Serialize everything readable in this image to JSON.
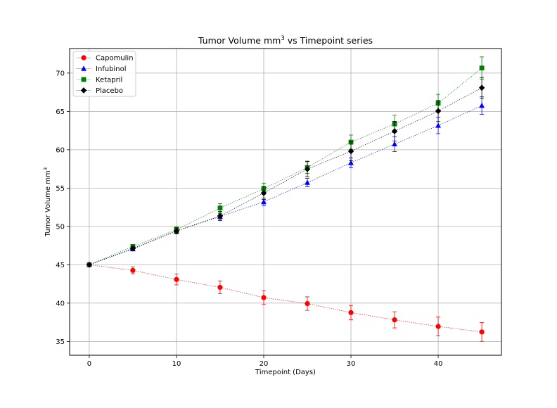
{
  "chart_data": {
    "type": "line",
    "title": "Tumor Volume mm",
    "title_sup": "3",
    "title_suffix": " vs Timepoint series",
    "xlabel": "Timepoint (Days)",
    "ylabel": "Tumor Volume mm",
    "ylabel_sup": "3",
    "x": [
      0,
      5,
      10,
      15,
      20,
      25,
      30,
      35,
      40,
      45
    ],
    "xlim": [
      -2.25,
      47.25
    ],
    "ylim": [
      33.2,
      73.2
    ],
    "xticks": [
      0,
      10,
      20,
      30,
      40
    ],
    "yticks": [
      35,
      40,
      45,
      50,
      55,
      60,
      65,
      70
    ],
    "grid": true,
    "legend_position": "top-left",
    "series": [
      {
        "name": "Capomulin",
        "color": "#ff0000",
        "marker": "circle",
        "values": [
          45.0,
          44.27,
          43.08,
          42.06,
          40.72,
          39.94,
          38.77,
          37.82,
          36.96,
          36.24
        ],
        "errors": [
          0.0,
          0.45,
          0.7,
          0.84,
          0.91,
          0.88,
          0.93,
          1.05,
          1.22,
          1.22
        ]
      },
      {
        "name": "Infubinol",
        "color": "#0000ff",
        "marker": "triangle",
        "values": [
          45.0,
          47.06,
          49.4,
          51.3,
          53.2,
          55.72,
          58.3,
          60.74,
          63.16,
          65.76
        ],
        "errors": [
          0.0,
          0.24,
          0.28,
          0.36,
          0.48,
          0.55,
          0.63,
          0.98,
          1.06,
          1.14
        ]
      },
      {
        "name": "Ketapril",
        "color": "#008000",
        "marker": "square",
        "values": [
          45.0,
          47.39,
          49.58,
          52.4,
          54.92,
          57.68,
          60.99,
          63.37,
          66.07,
          70.66
        ],
        "errors": [
          0.0,
          0.26,
          0.36,
          0.58,
          0.73,
          0.76,
          0.93,
          1.13,
          1.16,
          1.45
        ]
      },
      {
        "name": "Placebo",
        "color": "#000000",
        "marker": "diamond",
        "values": [
          45.0,
          47.13,
          49.42,
          51.36,
          54.36,
          57.48,
          59.81,
          62.42,
          65.05,
          68.08
        ],
        "errors": [
          0.0,
          0.22,
          0.4,
          0.61,
          0.84,
          1.03,
          1.22,
          1.29,
          1.37,
          1.35
        ]
      }
    ]
  }
}
